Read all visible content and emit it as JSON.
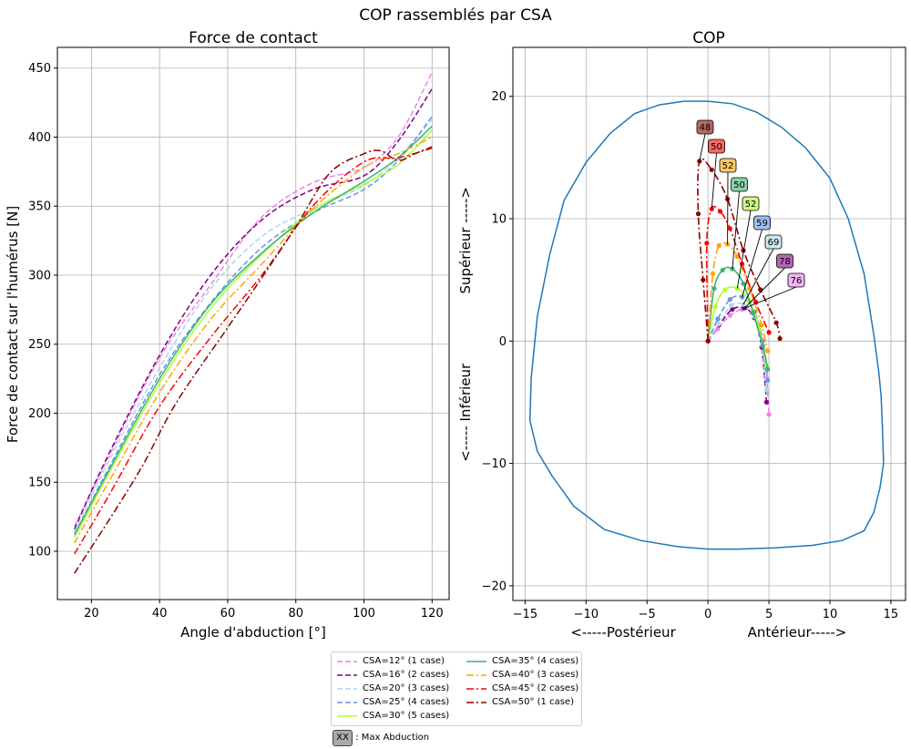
{
  "suptitle": "COP rassemblés par CSA",
  "legend_note": {
    "badge": "XX",
    "text": ": Max Abduction"
  },
  "chart_data": [
    {
      "type": "line",
      "title": "Force de contact",
      "xlabel": "Angle d'abduction [°]",
      "ylabel": "Force de contact sur l'humérus [N]",
      "xlim": [
        10,
        125
      ],
      "ylim": [
        65,
        465
      ],
      "xticks": [
        20,
        40,
        60,
        80,
        100,
        120
      ],
      "yticks": [
        100,
        150,
        200,
        250,
        300,
        350,
        400,
        450
      ],
      "grid": true,
      "series": [
        {
          "name": "CSA=12° (1 case)",
          "color": "#ee82ee",
          "dash": "dashed",
          "x": [
            15,
            25,
            40,
            55,
            70,
            85,
            100,
            110,
            120
          ],
          "y": [
            118,
            168,
            240,
            293,
            342,
            367,
            378,
            400,
            447
          ]
        },
        {
          "name": "CSA=16° (2 cases)",
          "color": "#800080",
          "dash": "dashed",
          "x": [
            15,
            25,
            40,
            55,
            70,
            85,
            100,
            110,
            120
          ],
          "y": [
            116,
            170,
            242,
            300,
            340,
            362,
            372,
            397,
            435
          ]
        },
        {
          "name": "CSA=20° (3 cases)",
          "color": "#add8e6",
          "dash": "dashed",
          "x": [
            15,
            25,
            40,
            55,
            70,
            85,
            100,
            110,
            120
          ],
          "y": [
            114,
            165,
            233,
            290,
            328,
            348,
            365,
            385,
            413
          ]
        },
        {
          "name": "CSA=25° (4 cases)",
          "color": "#6495ed",
          "dash": "dashed",
          "x": [
            15,
            25,
            40,
            55,
            70,
            85,
            100,
            110,
            120
          ],
          "y": [
            112,
            160,
            228,
            280,
            320,
            345,
            362,
            383,
            415
          ]
        },
        {
          "name": "CSA=30° (5 cases)",
          "color": "#adff2f",
          "dash": "solid",
          "x": [
            15,
            25,
            40,
            55,
            70,
            85,
            100,
            110,
            120
          ],
          "y": [
            110,
            156,
            222,
            276,
            315,
            347,
            366,
            380,
            405
          ]
        },
        {
          "name": "CSA=35° (4 cases)",
          "color": "#3cb371",
          "dash": "solid",
          "x": [
            15,
            25,
            40,
            55,
            70,
            85,
            100,
            110,
            120
          ],
          "y": [
            112,
            158,
            225,
            279,
            316,
            345,
            368,
            385,
            408
          ]
        },
        {
          "name": "CSA=40° (3 cases)",
          "color": "#ffa500",
          "dash": "dashdot",
          "x": [
            15,
            25,
            40,
            55,
            70,
            85,
            100,
            110,
            120
          ],
          "y": [
            106,
            150,
            215,
            268,
            308,
            348,
            378,
            388,
            400
          ]
        },
        {
          "name": "CSA=45° (2 cases)",
          "color": "#ff0000",
          "dash": "dashdot",
          "x": [
            15,
            25,
            40,
            55,
            70,
            85,
            100,
            110,
            120
          ],
          "y": [
            98,
            140,
            205,
            255,
            300,
            350,
            382,
            385,
            392
          ]
        },
        {
          "name": "CSA=50° (1 case)",
          "color": "#8b0000",
          "dash": "dashdot",
          "x": [
            15,
            25,
            35,
            45,
            60,
            70,
            80,
            90,
            100,
            105,
            110,
            115,
            120
          ],
          "y": [
            84,
            122,
            162,
            208,
            262,
            298,
            335,
            374,
            388,
            390,
            383,
            388,
            393
          ]
        }
      ]
    },
    {
      "type": "scatter",
      "title": "COP",
      "xlabel_left": "<-----Postérieur",
      "xlabel_right": "Antérieur----->",
      "ylabel": "<----- Inférieur                Supérieur ----->",
      "xlim": [
        -16,
        16.2
      ],
      "ylim": [
        -21.2,
        24
      ],
      "xticks": [
        -15,
        -10,
        -5,
        0,
        5,
        10,
        15
      ],
      "yticks": [
        -20,
        -10,
        0,
        10,
        20
      ],
      "grid": true,
      "outline": {
        "color": "#1f77b4",
        "x": [
          0,
          2,
          4,
          6,
          8,
          10,
          11.5,
          12.8,
          13.6,
          14,
          14.2,
          14.3,
          14.4,
          14.1,
          13.6,
          12.8,
          11,
          8.5,
          5.5,
          2.5,
          0,
          -2.5,
          -5.5,
          -8.5,
          -11,
          -12.8,
          -14,
          -14.6,
          -14.5,
          -14,
          -13,
          -11.8,
          -10,
          -8,
          -6,
          -4,
          -2,
          0
        ],
        "y": [
          19.6,
          19.4,
          18.7,
          17.5,
          15.8,
          13.3,
          10,
          5.5,
          0.5,
          -2.5,
          -4.5,
          -7,
          -10,
          -12,
          -14,
          -15.5,
          -16.3,
          -16.7,
          -16.9,
          -17,
          -17,
          -16.8,
          -16.3,
          -15.4,
          -13.5,
          -11,
          -9,
          -6.5,
          -3,
          2,
          7,
          11.5,
          14.6,
          17,
          18.6,
          19.3,
          19.6,
          19.6
        ]
      },
      "series": [
        {
          "name": "CSA=12°",
          "color": "#ee82ee",
          "dash": "dashed",
          "max_abduction": "76",
          "x": [
            0,
            0.8,
            1.8,
            2.8,
            3.6,
            4.3,
            4.8,
            5.0
          ],
          "y": [
            0,
            1.0,
            2.1,
            2.6,
            2.3,
            0.5,
            -3.0,
            -6.0
          ]
        },
        {
          "name": "CSA=16°",
          "color": "#800080",
          "dash": "dashed",
          "max_abduction": "78",
          "x": [
            0,
            0.9,
            2.0,
            3.0,
            3.8,
            4.4,
            4.8
          ],
          "y": [
            0,
            1.3,
            2.6,
            2.7,
            1.9,
            -0.5,
            -5.0
          ]
        },
        {
          "name": "CSA=20°",
          "color": "#add8e6",
          "dash": "dashed",
          "max_abduction": "69",
          "x": [
            0,
            0.9,
            1.9,
            2.9,
            3.8,
            4.4,
            4.8
          ],
          "y": [
            0,
            1.4,
            2.9,
            3.0,
            2.0,
            -0.3,
            -4.0
          ]
        },
        {
          "name": "CSA=25°",
          "color": "#6495ed",
          "dash": "dashed",
          "max_abduction": "59",
          "x": [
            0,
            0.8,
            1.8,
            2.8,
            3.8,
            4.5,
            4.9
          ],
          "y": [
            0,
            1.8,
            3.4,
            3.6,
            2.4,
            0.0,
            -3.2
          ]
        },
        {
          "name": "CSA=30°",
          "color": "#adff2f",
          "dash": "solid",
          "max_abduction": "52",
          "x": [
            0,
            0.6,
            1.4,
            2.4,
            3.4,
            4.2,
            4.8
          ],
          "y": [
            0,
            2.8,
            4.2,
            4.3,
            3.2,
            1.0,
            -2.0
          ]
        },
        {
          "name": "CSA=35°",
          "color": "#3cb371",
          "dash": "solid",
          "max_abduction": "50",
          "x": [
            0,
            0.5,
            1.2,
            2.0,
            2.9,
            3.7,
            4.5,
            4.9
          ],
          "y": [
            0,
            4.3,
            5.8,
            5.9,
            4.7,
            2.3,
            -0.4,
            -2.3
          ]
        },
        {
          "name": "CSA=40°",
          "color": "#ffa500",
          "dash": "dashdot",
          "max_abduction": "52",
          "x": [
            0,
            0.4,
            0.9,
            1.6,
            2.4,
            3.4,
            4.4,
            4.9
          ],
          "y": [
            0,
            5.5,
            7.8,
            7.9,
            6.9,
            4.3,
            1.3,
            -0.8
          ]
        },
        {
          "name": "CSA=45°",
          "color": "#ff0000",
          "dash": "dashdot",
          "max_abduction": "50",
          "x": [
            0,
            -0.1,
            0.3,
            1.0,
            1.8,
            2.8,
            3.9,
            5.0
          ],
          "y": [
            0,
            8.0,
            10.8,
            10.6,
            9.2,
            6.3,
            3.2,
            0.7
          ]
        },
        {
          "name": "CSA=50°",
          "color": "#8b0000",
          "dash": "dashdot",
          "max_abduction": "48",
          "x": [
            0,
            -0.4,
            -0.8,
            -0.7,
            0.3,
            1.6,
            2.9,
            4.3,
            5.6,
            5.9
          ],
          "y": [
            0,
            5.0,
            10.4,
            14.7,
            14.0,
            11.6,
            7.4,
            4.2,
            1.5,
            0.2
          ]
        }
      ]
    }
  ]
}
